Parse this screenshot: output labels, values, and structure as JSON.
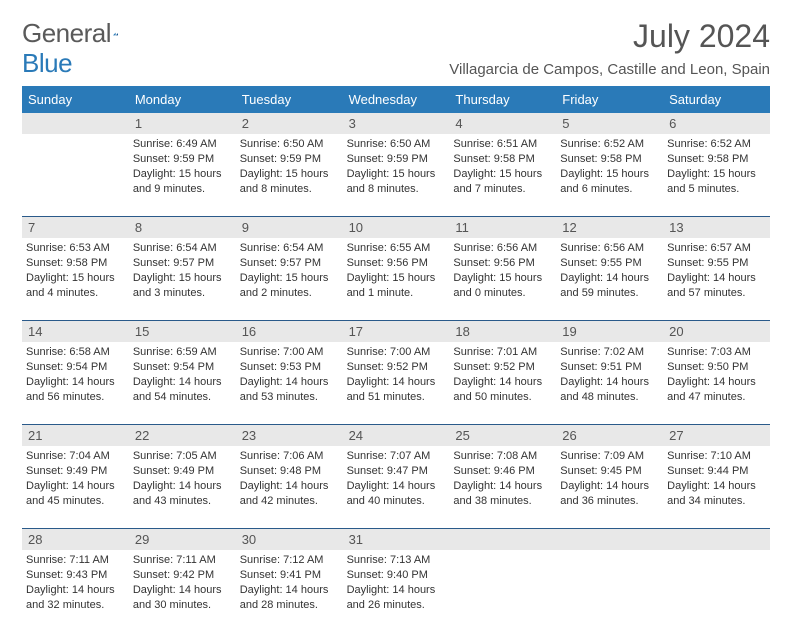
{
  "logo": {
    "word1": "General",
    "word2": "Blue"
  },
  "title": "July 2024",
  "location": "Villagarcia de Campos, Castille and Leon, Spain",
  "colors": {
    "header_bg": "#2a7ab8",
    "header_text": "#ffffff",
    "daynum_bg": "#e8e8e8",
    "row_divider": "#2a5a8a",
    "body_text": "#333333",
    "title_text": "#555555"
  },
  "day_names": [
    "Sunday",
    "Monday",
    "Tuesday",
    "Wednesday",
    "Thursday",
    "Friday",
    "Saturday"
  ],
  "weeks": [
    {
      "nums": [
        "",
        "1",
        "2",
        "3",
        "4",
        "5",
        "6"
      ],
      "cells": [
        null,
        {
          "sunrise": "Sunrise: 6:49 AM",
          "sunset": "Sunset: 9:59 PM",
          "day1": "Daylight: 15 hours",
          "day2": "and 9 minutes."
        },
        {
          "sunrise": "Sunrise: 6:50 AM",
          "sunset": "Sunset: 9:59 PM",
          "day1": "Daylight: 15 hours",
          "day2": "and 8 minutes."
        },
        {
          "sunrise": "Sunrise: 6:50 AM",
          "sunset": "Sunset: 9:59 PM",
          "day1": "Daylight: 15 hours",
          "day2": "and 8 minutes."
        },
        {
          "sunrise": "Sunrise: 6:51 AM",
          "sunset": "Sunset: 9:58 PM",
          "day1": "Daylight: 15 hours",
          "day2": "and 7 minutes."
        },
        {
          "sunrise": "Sunrise: 6:52 AM",
          "sunset": "Sunset: 9:58 PM",
          "day1": "Daylight: 15 hours",
          "day2": "and 6 minutes."
        },
        {
          "sunrise": "Sunrise: 6:52 AM",
          "sunset": "Sunset: 9:58 PM",
          "day1": "Daylight: 15 hours",
          "day2": "and 5 minutes."
        }
      ]
    },
    {
      "nums": [
        "7",
        "8",
        "9",
        "10",
        "11",
        "12",
        "13"
      ],
      "cells": [
        {
          "sunrise": "Sunrise: 6:53 AM",
          "sunset": "Sunset: 9:58 PM",
          "day1": "Daylight: 15 hours",
          "day2": "and 4 minutes."
        },
        {
          "sunrise": "Sunrise: 6:54 AM",
          "sunset": "Sunset: 9:57 PM",
          "day1": "Daylight: 15 hours",
          "day2": "and 3 minutes."
        },
        {
          "sunrise": "Sunrise: 6:54 AM",
          "sunset": "Sunset: 9:57 PM",
          "day1": "Daylight: 15 hours",
          "day2": "and 2 minutes."
        },
        {
          "sunrise": "Sunrise: 6:55 AM",
          "sunset": "Sunset: 9:56 PM",
          "day1": "Daylight: 15 hours",
          "day2": "and 1 minute."
        },
        {
          "sunrise": "Sunrise: 6:56 AM",
          "sunset": "Sunset: 9:56 PM",
          "day1": "Daylight: 15 hours",
          "day2": "and 0 minutes."
        },
        {
          "sunrise": "Sunrise: 6:56 AM",
          "sunset": "Sunset: 9:55 PM",
          "day1": "Daylight: 14 hours",
          "day2": "and 59 minutes."
        },
        {
          "sunrise": "Sunrise: 6:57 AM",
          "sunset": "Sunset: 9:55 PM",
          "day1": "Daylight: 14 hours",
          "day2": "and 57 minutes."
        }
      ]
    },
    {
      "nums": [
        "14",
        "15",
        "16",
        "17",
        "18",
        "19",
        "20"
      ],
      "cells": [
        {
          "sunrise": "Sunrise: 6:58 AM",
          "sunset": "Sunset: 9:54 PM",
          "day1": "Daylight: 14 hours",
          "day2": "and 56 minutes."
        },
        {
          "sunrise": "Sunrise: 6:59 AM",
          "sunset": "Sunset: 9:54 PM",
          "day1": "Daylight: 14 hours",
          "day2": "and 54 minutes."
        },
        {
          "sunrise": "Sunrise: 7:00 AM",
          "sunset": "Sunset: 9:53 PM",
          "day1": "Daylight: 14 hours",
          "day2": "and 53 minutes."
        },
        {
          "sunrise": "Sunrise: 7:00 AM",
          "sunset": "Sunset: 9:52 PM",
          "day1": "Daylight: 14 hours",
          "day2": "and 51 minutes."
        },
        {
          "sunrise": "Sunrise: 7:01 AM",
          "sunset": "Sunset: 9:52 PM",
          "day1": "Daylight: 14 hours",
          "day2": "and 50 minutes."
        },
        {
          "sunrise": "Sunrise: 7:02 AM",
          "sunset": "Sunset: 9:51 PM",
          "day1": "Daylight: 14 hours",
          "day2": "and 48 minutes."
        },
        {
          "sunrise": "Sunrise: 7:03 AM",
          "sunset": "Sunset: 9:50 PM",
          "day1": "Daylight: 14 hours",
          "day2": "and 47 minutes."
        }
      ]
    },
    {
      "nums": [
        "21",
        "22",
        "23",
        "24",
        "25",
        "26",
        "27"
      ],
      "cells": [
        {
          "sunrise": "Sunrise: 7:04 AM",
          "sunset": "Sunset: 9:49 PM",
          "day1": "Daylight: 14 hours",
          "day2": "and 45 minutes."
        },
        {
          "sunrise": "Sunrise: 7:05 AM",
          "sunset": "Sunset: 9:49 PM",
          "day1": "Daylight: 14 hours",
          "day2": "and 43 minutes."
        },
        {
          "sunrise": "Sunrise: 7:06 AM",
          "sunset": "Sunset: 9:48 PM",
          "day1": "Daylight: 14 hours",
          "day2": "and 42 minutes."
        },
        {
          "sunrise": "Sunrise: 7:07 AM",
          "sunset": "Sunset: 9:47 PM",
          "day1": "Daylight: 14 hours",
          "day2": "and 40 minutes."
        },
        {
          "sunrise": "Sunrise: 7:08 AM",
          "sunset": "Sunset: 9:46 PM",
          "day1": "Daylight: 14 hours",
          "day2": "and 38 minutes."
        },
        {
          "sunrise": "Sunrise: 7:09 AM",
          "sunset": "Sunset: 9:45 PM",
          "day1": "Daylight: 14 hours",
          "day2": "and 36 minutes."
        },
        {
          "sunrise": "Sunrise: 7:10 AM",
          "sunset": "Sunset: 9:44 PM",
          "day1": "Daylight: 14 hours",
          "day2": "and 34 minutes."
        }
      ]
    },
    {
      "nums": [
        "28",
        "29",
        "30",
        "31",
        "",
        "",
        ""
      ],
      "cells": [
        {
          "sunrise": "Sunrise: 7:11 AM",
          "sunset": "Sunset: 9:43 PM",
          "day1": "Daylight: 14 hours",
          "day2": "and 32 minutes."
        },
        {
          "sunrise": "Sunrise: 7:11 AM",
          "sunset": "Sunset: 9:42 PM",
          "day1": "Daylight: 14 hours",
          "day2": "and 30 minutes."
        },
        {
          "sunrise": "Sunrise: 7:12 AM",
          "sunset": "Sunset: 9:41 PM",
          "day1": "Daylight: 14 hours",
          "day2": "and 28 minutes."
        },
        {
          "sunrise": "Sunrise: 7:13 AM",
          "sunset": "Sunset: 9:40 PM",
          "day1": "Daylight: 14 hours",
          "day2": "and 26 minutes."
        },
        null,
        null,
        null
      ]
    }
  ]
}
